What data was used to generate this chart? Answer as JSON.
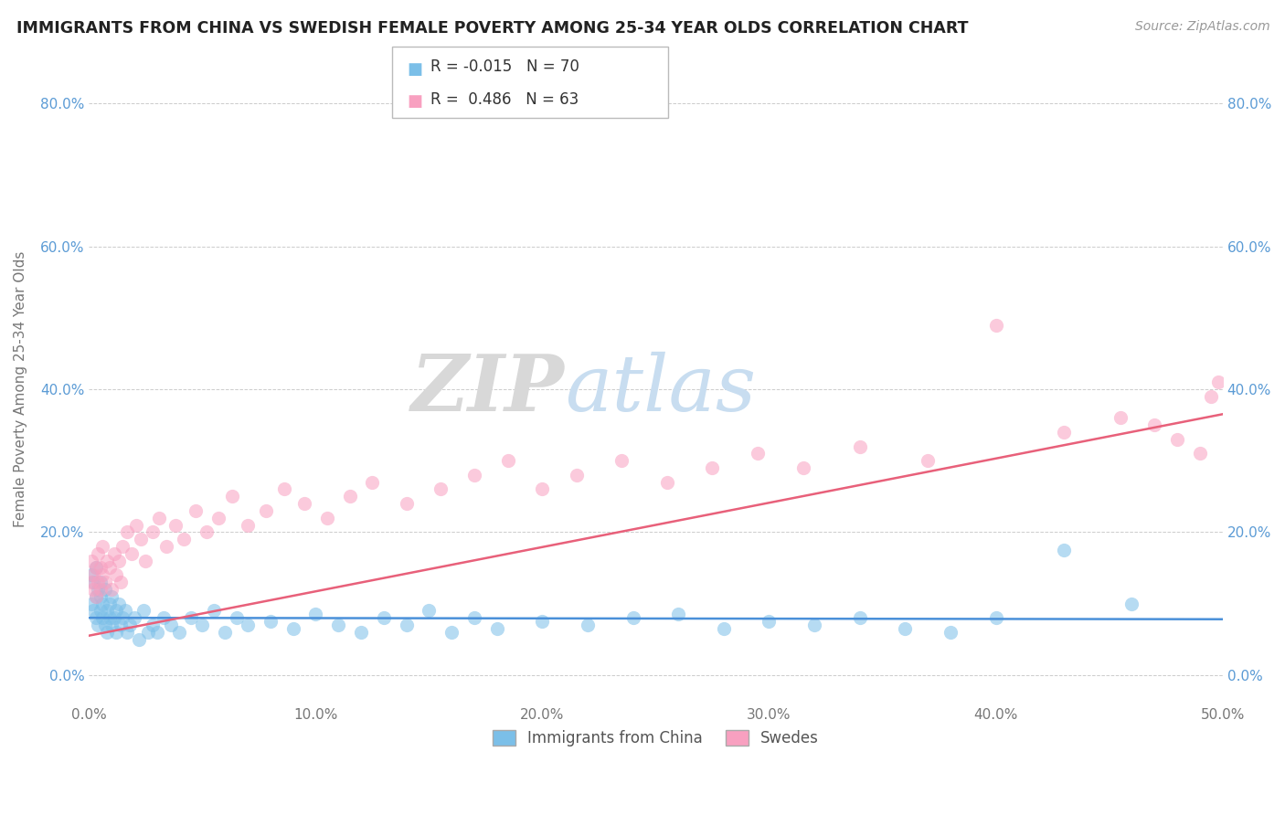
{
  "title": "IMMIGRANTS FROM CHINA VS SWEDISH FEMALE POVERTY AMONG 25-34 YEAR OLDS CORRELATION CHART",
  "source": "Source: ZipAtlas.com",
  "ylabel": "Female Poverty Among 25-34 Year Olds",
  "xlim": [
    0.0,
    0.5
  ],
  "ylim": [
    -0.04,
    0.84
  ],
  "xticks": [
    0.0,
    0.1,
    0.2,
    0.3,
    0.4,
    0.5
  ],
  "xticklabels": [
    "0.0%",
    "10.0%",
    "20.0%",
    "30.0%",
    "40.0%",
    "50.0%"
  ],
  "yticks": [
    0.0,
    0.2,
    0.4,
    0.6,
    0.8
  ],
  "yticklabels": [
    "0.0%",
    "20.0%",
    "40.0%",
    "60.0%",
    "80.0%"
  ],
  "legend_blue_label": "Immigrants from China",
  "legend_pink_label": "Swedes",
  "R_blue": -0.015,
  "N_blue": 70,
  "R_pink": 0.486,
  "N_pink": 63,
  "blue_color": "#7bbfe8",
  "pink_color": "#f8a0c0",
  "blue_line_color": "#4a90d9",
  "pink_line_color": "#e8607a",
  "watermark_zip": "ZIP",
  "watermark_atlas": "atlas",
  "blue_scatter_x": [
    0.001,
    0.001,
    0.002,
    0.002,
    0.003,
    0.003,
    0.003,
    0.004,
    0.004,
    0.005,
    0.005,
    0.005,
    0.006,
    0.006,
    0.007,
    0.007,
    0.008,
    0.008,
    0.009,
    0.009,
    0.01,
    0.01,
    0.011,
    0.012,
    0.012,
    0.013,
    0.014,
    0.015,
    0.016,
    0.017,
    0.018,
    0.02,
    0.022,
    0.024,
    0.026,
    0.028,
    0.03,
    0.033,
    0.036,
    0.04,
    0.045,
    0.05,
    0.055,
    0.06,
    0.065,
    0.07,
    0.08,
    0.09,
    0.1,
    0.11,
    0.12,
    0.13,
    0.14,
    0.15,
    0.16,
    0.17,
    0.18,
    0.2,
    0.22,
    0.24,
    0.26,
    0.28,
    0.3,
    0.32,
    0.34,
    0.36,
    0.38,
    0.4,
    0.43,
    0.46
  ],
  "blue_scatter_y": [
    0.14,
    0.1,
    0.13,
    0.09,
    0.11,
    0.08,
    0.15,
    0.12,
    0.07,
    0.09,
    0.11,
    0.13,
    0.08,
    0.1,
    0.07,
    0.12,
    0.09,
    0.06,
    0.08,
    0.1,
    0.07,
    0.11,
    0.08,
    0.09,
    0.06,
    0.1,
    0.07,
    0.08,
    0.09,
    0.06,
    0.07,
    0.08,
    0.05,
    0.09,
    0.06,
    0.07,
    0.06,
    0.08,
    0.07,
    0.06,
    0.08,
    0.07,
    0.09,
    0.06,
    0.08,
    0.07,
    0.075,
    0.065,
    0.085,
    0.07,
    0.06,
    0.08,
    0.07,
    0.09,
    0.06,
    0.08,
    0.065,
    0.075,
    0.07,
    0.08,
    0.085,
    0.065,
    0.075,
    0.07,
    0.08,
    0.065,
    0.06,
    0.08,
    0.175,
    0.1
  ],
  "pink_scatter_x": [
    0.001,
    0.001,
    0.002,
    0.002,
    0.003,
    0.003,
    0.004,
    0.004,
    0.005,
    0.005,
    0.006,
    0.006,
    0.007,
    0.008,
    0.009,
    0.01,
    0.011,
    0.012,
    0.013,
    0.014,
    0.015,
    0.017,
    0.019,
    0.021,
    0.023,
    0.025,
    0.028,
    0.031,
    0.034,
    0.038,
    0.042,
    0.047,
    0.052,
    0.057,
    0.063,
    0.07,
    0.078,
    0.086,
    0.095,
    0.105,
    0.115,
    0.125,
    0.14,
    0.155,
    0.17,
    0.185,
    0.2,
    0.215,
    0.235,
    0.255,
    0.275,
    0.295,
    0.315,
    0.34,
    0.37,
    0.4,
    0.43,
    0.455,
    0.47,
    0.48,
    0.49,
    0.495,
    0.498
  ],
  "pink_scatter_y": [
    0.13,
    0.16,
    0.14,
    0.12,
    0.15,
    0.11,
    0.13,
    0.17,
    0.12,
    0.15,
    0.14,
    0.18,
    0.13,
    0.16,
    0.15,
    0.12,
    0.17,
    0.14,
    0.16,
    0.13,
    0.18,
    0.2,
    0.17,
    0.21,
    0.19,
    0.16,
    0.2,
    0.22,
    0.18,
    0.21,
    0.19,
    0.23,
    0.2,
    0.22,
    0.25,
    0.21,
    0.23,
    0.26,
    0.24,
    0.22,
    0.25,
    0.27,
    0.24,
    0.26,
    0.28,
    0.3,
    0.26,
    0.28,
    0.3,
    0.27,
    0.29,
    0.31,
    0.29,
    0.32,
    0.3,
    0.49,
    0.34,
    0.36,
    0.35,
    0.33,
    0.31,
    0.39,
    0.41
  ]
}
